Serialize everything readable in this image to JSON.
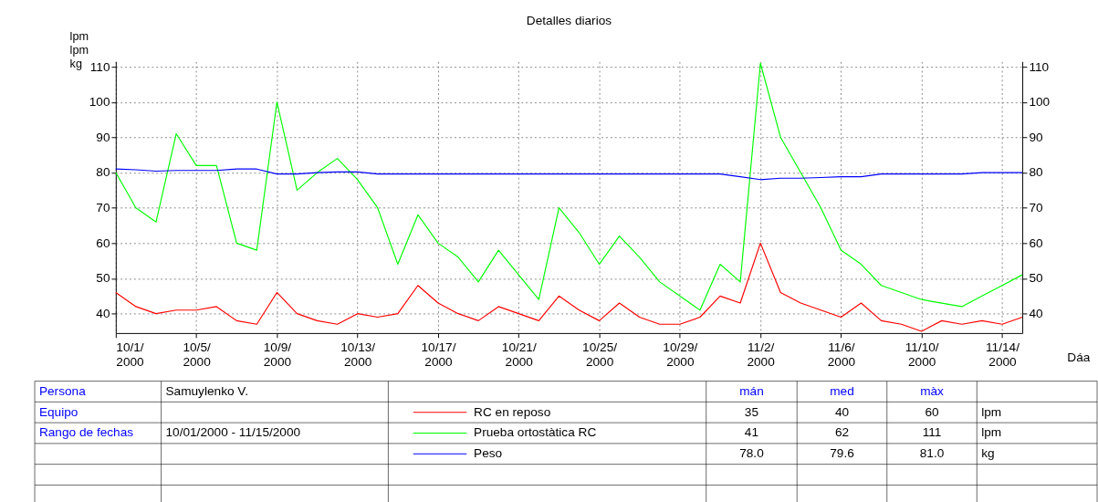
{
  "chart_data": {
    "type": "line",
    "title": "Detalles diarios",
    "xlabel": "Dáa",
    "ylabel": "lpm\nlpm\nkg",
    "x": [
      "2000-10-01",
      "2000-10-02",
      "2000-10-03",
      "2000-10-04",
      "2000-10-05",
      "2000-10-06",
      "2000-10-07",
      "2000-10-08",
      "2000-10-09",
      "2000-10-10",
      "2000-10-11",
      "2000-10-12",
      "2000-10-13",
      "2000-10-14",
      "2000-10-15",
      "2000-10-16",
      "2000-10-17",
      "2000-10-18",
      "2000-10-19",
      "2000-10-20",
      "2000-10-21",
      "2000-10-22",
      "2000-10-23",
      "2000-10-24",
      "2000-10-25",
      "2000-10-26",
      "2000-10-27",
      "2000-10-28",
      "2000-10-29",
      "2000-10-30",
      "2000-10-31",
      "2000-11-01",
      "2000-11-02",
      "2000-11-03",
      "2000-11-04",
      "2000-11-05",
      "2000-11-06",
      "2000-11-07",
      "2000-11-08",
      "2000-11-09",
      "2000-11-10",
      "2000-11-11",
      "2000-11-12",
      "2000-11-13",
      "2000-11-14",
      "2000-11-15"
    ],
    "series": [
      {
        "name": "RC en reposo",
        "color": "#ff0000",
        "values": [
          46,
          42,
          40,
          41,
          41,
          42,
          38,
          37,
          46,
          40,
          38,
          37,
          40,
          39,
          40,
          48,
          43,
          40,
          38,
          42,
          40,
          38,
          45,
          41,
          38,
          43,
          39,
          37,
          37,
          39,
          45,
          43,
          60,
          46,
          43,
          41,
          39,
          43,
          38,
          37,
          35,
          38,
          37,
          38,
          37,
          39
        ]
      },
      {
        "name": "Prueba ortostàtica RC",
        "color": "#00ff00",
        "values": [
          80,
          70,
          66,
          91,
          82,
          82,
          60,
          58,
          100,
          75,
          80,
          84,
          78,
          70,
          54,
          68,
          60,
          56,
          49,
          58,
          51,
          44,
          70,
          63,
          54,
          62,
          56,
          49,
          45,
          41,
          54,
          49,
          111,
          90,
          80,
          70,
          58,
          54,
          48,
          46,
          44,
          43,
          42,
          45,
          48,
          51
        ]
      },
      {
        "name": "Peso",
        "color": "#0000ff",
        "values": [
          81.0,
          80.8,
          80.4,
          80.6,
          80.6,
          80.6,
          81.0,
          81.0,
          79.6,
          79.6,
          80.0,
          80.2,
          80.2,
          79.6,
          79.6,
          79.6,
          79.6,
          79.6,
          79.6,
          79.6,
          79.6,
          79.6,
          79.6,
          79.6,
          79.6,
          79.6,
          79.6,
          79.6,
          79.6,
          79.6,
          79.6,
          78.8,
          78.0,
          78.4,
          78.4,
          78.6,
          78.8,
          78.8,
          79.6,
          79.6,
          79.6,
          79.6,
          79.6,
          80.0,
          80.0,
          80.0
        ]
      }
    ],
    "xlim": [
      "2000-10-01",
      "2000-11-15"
    ],
    "xticks": [
      {
        "value": "2000-10-01",
        "label": "10/1/2000"
      },
      {
        "value": "2000-10-05",
        "label": "10/5/2000"
      },
      {
        "value": "2000-10-09",
        "label": "10/9/2000"
      },
      {
        "value": "2000-10-13",
        "label": "10/13/2000"
      },
      {
        "value": "2000-10-17",
        "label": "10/17/2000"
      },
      {
        "value": "2000-10-21",
        "label": "10/21/2000"
      },
      {
        "value": "2000-10-25",
        "label": "10/25/2000"
      },
      {
        "value": "2000-10-29",
        "label": "10/29/2000"
      },
      {
        "value": "2000-11-02",
        "label": "11/2/2000"
      },
      {
        "value": "2000-11-06",
        "label": "11/6/2000"
      },
      {
        "value": "2000-11-10",
        "label": "11/10/2000"
      },
      {
        "value": "2000-11-14",
        "label": "11/14/2000"
      }
    ],
    "ylim": [
      34.5,
      111.5
    ],
    "yticks": [
      40,
      50,
      60,
      70,
      80,
      90,
      100,
      110
    ],
    "y2lim": [
      34.5,
      111.5
    ],
    "y2ticks": [
      40,
      50,
      60,
      70,
      80,
      90,
      100,
      110
    ],
    "grid": true,
    "legend": "bottom",
    "line_style": "solid",
    "marker": "none",
    "annotations": [
      "Persona",
      "Samuylenko V.",
      "Equipo",
      "Rango de fechas",
      "10/01/2000 - 11/15/2000",
      "mán",
      "med",
      "màx",
      "35",
      "40",
      "60",
      "lpm",
      "41",
      "62",
      "111",
      "lpm",
      "78.0",
      "79.6",
      "81.0",
      "kg"
    ]
  }
}
